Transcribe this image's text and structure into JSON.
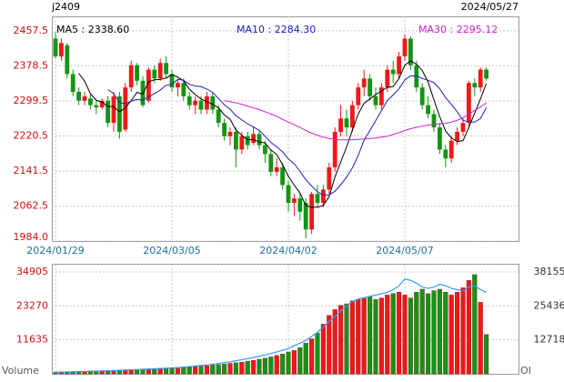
{
  "chart_data": [
    {
      "type": "candlestick",
      "title": "j2409",
      "date": "2024/05/27",
      "categories": [
        "2024/01/29",
        null,
        null,
        null,
        null,
        null,
        null,
        null,
        null,
        null,
        null,
        null,
        null,
        null,
        null,
        null,
        null,
        null,
        null,
        null,
        "2024/03/05",
        null,
        null,
        null,
        null,
        null,
        null,
        null,
        null,
        null,
        null,
        null,
        null,
        null,
        null,
        null,
        null,
        null,
        null,
        null,
        "2024/04/02",
        null,
        null,
        null,
        null,
        null,
        null,
        null,
        null,
        null,
        null,
        null,
        null,
        null,
        null,
        null,
        null,
        null,
        null,
        null,
        "2024/05/07",
        null,
        null,
        null,
        null,
        null,
        null,
        null,
        null,
        null,
        null,
        null,
        null,
        null,
        null
      ],
      "ohlc": [
        [
          2440,
          2455,
          2395,
          2400
        ],
        [
          2400,
          2440,
          2390,
          2430
        ],
        [
          2425,
          2430,
          2350,
          2360
        ],
        [
          2360,
          2370,
          2310,
          2320
        ],
        [
          2320,
          2330,
          2290,
          2300
        ],
        [
          2300,
          2320,
          2290,
          2310
        ],
        [
          2305,
          2315,
          2280,
          2290
        ],
        [
          2290,
          2300,
          2270,
          2285
        ],
        [
          2285,
          2305,
          2280,
          2300
        ],
        [
          2300,
          2310,
          2240,
          2250
        ],
        [
          2250,
          2320,
          2230,
          2310
        ],
        [
          2310,
          2320,
          2215,
          2230
        ],
        [
          2235,
          2340,
          2230,
          2330
        ],
        [
          2330,
          2390,
          2320,
          2380
        ],
        [
          2380,
          2385,
          2335,
          2345
        ],
        [
          2345,
          2355,
          2285,
          2290
        ],
        [
          2300,
          2375,
          2295,
          2370
        ],
        [
          2370,
          2380,
          2340,
          2350
        ],
        [
          2350,
          2395,
          2345,
          2385
        ],
        [
          2385,
          2400,
          2350,
          2360
        ],
        [
          2360,
          2370,
          2320,
          2330
        ],
        [
          2330,
          2350,
          2310,
          2340
        ],
        [
          2340,
          2350,
          2300,
          2310
        ],
        [
          2310,
          2320,
          2280,
          2290
        ],
        [
          2290,
          2310,
          2270,
          2300
        ],
        [
          2300,
          2310,
          2270,
          2280
        ],
        [
          2280,
          2320,
          2270,
          2310
        ],
        [
          2310,
          2320,
          2270,
          2280
        ],
        [
          2280,
          2290,
          2240,
          2250
        ],
        [
          2250,
          2260,
          2210,
          2220
        ],
        [
          2220,
          2240,
          2200,
          2230
        ],
        [
          2230,
          2240,
          2150,
          2190
        ],
        [
          2190,
          2230,
          2180,
          2220
        ],
        [
          2220,
          2230,
          2190,
          2200
        ],
        [
          2205,
          2240,
          2200,
          2225
        ],
        [
          2225,
          2235,
          2190,
          2200
        ],
        [
          2200,
          2210,
          2160,
          2180
        ],
        [
          2180,
          2190,
          2130,
          2140
        ],
        [
          2140,
          2170,
          2130,
          2150
        ],
        [
          2150,
          2160,
          2100,
          2110
        ],
        [
          2110,
          2120,
          2050,
          2070
        ],
        [
          2070,
          2090,
          2040,
          2080
        ],
        [
          2080,
          2090,
          2030,
          2050
        ],
        [
          2070,
          2080,
          1990,
          2010
        ],
        [
          2010,
          2095,
          2000,
          2090
        ],
        [
          2090,
          2110,
          2060,
          2070
        ],
        [
          2070,
          2110,
          2060,
          2100
        ],
        [
          2100,
          2160,
          2090,
          2150
        ],
        [
          2150,
          2240,
          2140,
          2230
        ],
        [
          2230,
          2290,
          2220,
          2260
        ],
        [
          2260,
          2280,
          2220,
          2240
        ],
        [
          2240,
          2300,
          2230,
          2290
        ],
        [
          2290,
          2340,
          2280,
          2330
        ],
        [
          2330,
          2370,
          2310,
          2350
        ],
        [
          2350,
          2360,
          2300,
          2310
        ],
        [
          2310,
          2330,
          2280,
          2290
        ],
        [
          2290,
          2340,
          2280,
          2330
        ],
        [
          2330,
          2380,
          2320,
          2370
        ],
        [
          2370,
          2390,
          2340,
          2360
        ],
        [
          2360,
          2410,
          2350,
          2400
        ],
        [
          2400,
          2450,
          2390,
          2440
        ],
        [
          2440,
          2445,
          2370,
          2380
        ],
        [
          2380,
          2390,
          2320,
          2330
        ],
        [
          2330,
          2340,
          2280,
          2290
        ],
        [
          2290,
          2310,
          2260,
          2270
        ],
        [
          2270,
          2280,
          2230,
          2240
        ],
        [
          2240,
          2250,
          2180,
          2190
        ],
        [
          2190,
          2200,
          2150,
          2170
        ],
        [
          2170,
          2220,
          2160,
          2210
        ],
        [
          2210,
          2240,
          2200,
          2230
        ],
        [
          2230,
          2260,
          2220,
          2250
        ],
        [
          2250,
          2345,
          2240,
          2340
        ],
        [
          2340,
          2350,
          2310,
          2330
        ],
        [
          2330,
          2375,
          2320,
          2370
        ],
        [
          2370,
          2375,
          2345,
          2350
        ]
      ],
      "up_color": "#f01818",
      "down_color": "#149414",
      "ma": [
        {
          "name": "MA5 : 2338.60",
          "color": "#000000",
          "values": [
            null,
            null,
            null,
            null,
            2362,
            2344,
            2316,
            2301,
            2297,
            2287,
            2287,
            2275,
            2284,
            2300,
            2319,
            2315,
            2343,
            2347,
            2348,
            2351,
            2359,
            2353,
            2345,
            2326,
            2314,
            2304,
            2298,
            2292,
            2284,
            2268,
            2258,
            2234,
            2222,
            2212,
            2213,
            2207,
            2205,
            2189,
            2179,
            2156,
            2130,
            2110,
            2092,
            2064,
            2060,
            2060,
            2064,
            2084,
            2128,
            2162,
            2196,
            2234,
            2270,
            2294,
            2304,
            2314,
            2322,
            2330,
            2332,
            2350,
            2380,
            2390,
            2382,
            2368,
            2342,
            2302,
            2264,
            2232,
            2216,
            2208,
            2210,
            2240,
            2272,
            2304,
            2338.6
          ]
        },
        {
          "name": "MA10 : 2284.30",
          "color": "#2020c0",
          "values": [
            null,
            null,
            null,
            null,
            null,
            null,
            null,
            null,
            null,
            2325,
            2316,
            2296,
            2293,
            2299,
            2303,
            2301,
            2309,
            2316,
            2324,
            2335,
            2337,
            2348,
            2346,
            2337,
            2333,
            2332,
            2326,
            2319,
            2305,
            2291,
            2281,
            2266,
            2257,
            2248,
            2241,
            2233,
            2220,
            2206,
            2196,
            2185,
            2169,
            2158,
            2141,
            2122,
            2108,
            2095,
            2087,
            2088,
            2096,
            2111,
            2128,
            2149,
            2177,
            2211,
            2233,
            2255,
            2278,
            2300,
            2313,
            2327,
            2347,
            2356,
            2356,
            2350,
            2346,
            2341,
            2327,
            2307,
            2292,
            2275,
            2256,
            2252,
            2252,
            2260,
            2284.3
          ]
        },
        {
          "name": "MA30 : 2295.12",
          "color": "#d020d0",
          "values": [
            null,
            null,
            null,
            null,
            null,
            null,
            null,
            null,
            null,
            null,
            null,
            null,
            null,
            null,
            null,
            null,
            null,
            null,
            null,
            null,
            null,
            null,
            null,
            null,
            null,
            null,
            null,
            null,
            null,
            2300,
            2298,
            2295,
            2292,
            2288,
            2284,
            2280,
            2275,
            2270,
            2265,
            2258,
            2252,
            2246,
            2240,
            2233,
            2227,
            2222,
            2218,
            2215,
            2213,
            2212,
            2212,
            2212,
            2213,
            2214,
            2215,
            2216,
            2218,
            2220,
            2224,
            2228,
            2233,
            2237,
            2240,
            2243,
            2245,
            2247,
            2248,
            2249,
            2252,
            2256,
            2262,
            2270,
            2278,
            2286,
            2295.12
          ]
        }
      ],
      "ylim": [
        1984,
        2490
      ],
      "yticks": [
        {
          "value": 1984,
          "label": "1984.0"
        },
        2062.5,
        2141.5,
        2220.5,
        2299.5,
        2378.5,
        2457.5
      ],
      "grid": true
    },
    {
      "type": "volume",
      "series": [
        {
          "name": "Volume",
          "values": [
            500,
            600,
            700,
            800,
            900,
            900,
            1000,
            1000,
            1100,
            1200,
            1200,
            1300,
            1400,
            1500,
            1500,
            1600,
            1700,
            1800,
            1900,
            2000,
            2100,
            2200,
            2300,
            2400,
            2500,
            2600,
            2800,
            3000,
            3200,
            3400,
            3600,
            3800,
            4000,
            4300,
            4600,
            5000,
            5400,
            5800,
            6300,
            6800,
            7500,
            8000,
            9000,
            10500,
            12000,
            14000,
            17000,
            20000,
            22000,
            23500,
            24000,
            25000,
            25500,
            26000,
            26500,
            25500,
            26000,
            27000,
            27500,
            28000,
            27000,
            26000,
            28000,
            29000,
            27500,
            28500,
            29000,
            28000,
            27000,
            28000,
            29500,
            32000,
            34000,
            24500,
            13500
          ]
        },
        {
          "name": "OI",
          "axis": "y2",
          "color": "#3399ff",
          "values": [
            600,
            650,
            700,
            750,
            800,
            850,
            900,
            950,
            1000,
            1100,
            1200,
            1300,
            1400,
            1500,
            1600,
            1700,
            1800,
            1900,
            2000,
            2100,
            2200,
            2300,
            2500,
            2700,
            2900,
            3100,
            3300,
            3600,
            3900,
            4200,
            4500,
            4900,
            5300,
            5700,
            6100,
            6600,
            7100,
            7600,
            8200,
            8800,
            9500,
            10500,
            11500,
            12500,
            14000,
            15500,
            17500,
            19500,
            21500,
            23500,
            25500,
            27000,
            28000,
            28500,
            29000,
            29500,
            30000,
            30500,
            31500,
            33000,
            35500,
            35000,
            34000,
            32500,
            32000,
            32500,
            33500,
            33000,
            32000,
            31500,
            31000,
            32500,
            33000,
            31500,
            30500
          ]
        }
      ],
      "ylim": [
        0,
        37400
      ],
      "yticks": [
        11635,
        23270,
        34905
      ],
      "y2lim": [
        0,
        40870
      ],
      "y2ticks": [
        12718,
        25436,
        38155
      ],
      "grid": true
    }
  ]
}
